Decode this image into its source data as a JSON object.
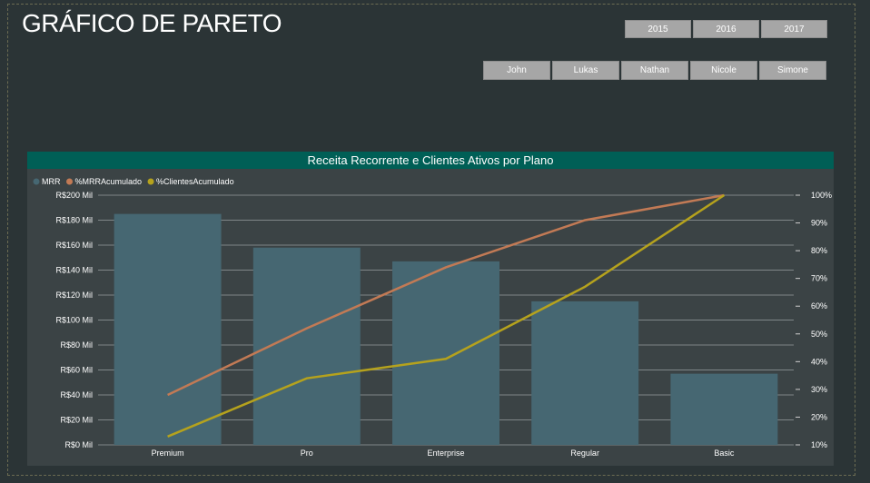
{
  "page": {
    "title": "GRÁFICO DE PARETO"
  },
  "slicers": {
    "years": [
      "2015",
      "2016",
      "2017"
    ],
    "people": [
      "John",
      "Lukas",
      "Nathan",
      "Nicole",
      "Simone"
    ]
  },
  "colors": {
    "bar": "#466772",
    "mrr_line": "#c27a55",
    "clients_line": "#b5a21d",
    "header": "#005f56"
  },
  "chart_data": {
    "type": "bar",
    "title": "Receita Recorrente e Clientes Ativos por Plano",
    "categories": [
      "Premium",
      "Pro",
      "Enterprise",
      "Regular",
      "Basic"
    ],
    "series": [
      {
        "name": "MRR",
        "type": "bar",
        "axis": "left",
        "values": [
          185,
          158,
          147,
          115,
          57
        ]
      },
      {
        "name": "%MRRAcumulado",
        "type": "line",
        "axis": "right",
        "values": [
          28,
          52,
          74,
          91,
          100
        ]
      },
      {
        "name": "%ClientesAcumulado",
        "type": "line",
        "axis": "right",
        "values": [
          13,
          34,
          41,
          67,
          100
        ]
      }
    ],
    "y_left": {
      "ylim": [
        0,
        200
      ],
      "ticks": [
        0,
        20,
        40,
        60,
        80,
        100,
        120,
        140,
        160,
        180,
        200
      ],
      "tick_labels": [
        "R$0 Mil",
        "R$20 Mil",
        "R$40 Mil",
        "R$60 Mil",
        "R$80 Mil",
        "R$100 Mil",
        "R$120 Mil",
        "R$140 Mil",
        "R$160 Mil",
        "R$180 Mil",
        "R$200 Mil"
      ]
    },
    "y_right": {
      "ylim": [
        10,
        100
      ],
      "ticks": [
        10,
        20,
        30,
        40,
        50,
        60,
        70,
        80,
        90,
        100
      ],
      "tick_labels": [
        "10%",
        "20%",
        "30%",
        "40%",
        "50%",
        "60%",
        "70%",
        "80%",
        "90%",
        "100%"
      ]
    },
    "legend_position": "top-left",
    "grid": true
  }
}
